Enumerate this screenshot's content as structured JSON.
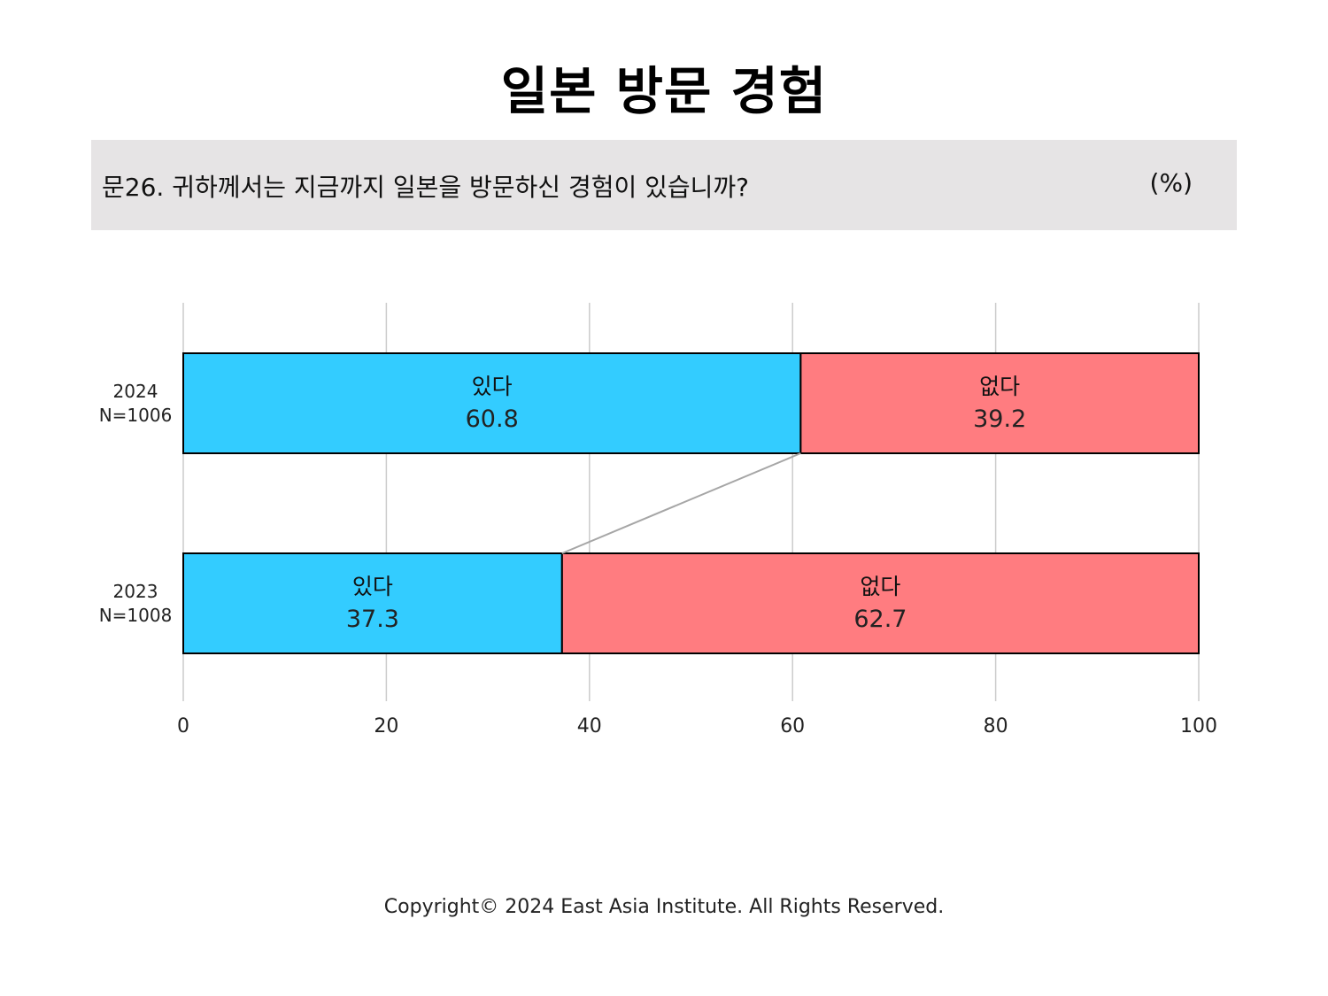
{
  "title": "일본 방문 경험",
  "question": {
    "text": "문26. 귀하께서는 지금까지 일본을 방문하신 경험이 있습니까?",
    "unit": "(%)"
  },
  "colors": {
    "yes": "#33ccff",
    "no": "#ff7c80",
    "grid": "#cccccc",
    "connector": "#a6a6a6"
  },
  "chart_data": {
    "type": "bar",
    "orientation": "horizontal",
    "stacked": true,
    "categories": [
      {
        "year": "2024",
        "n": "N=1006"
      },
      {
        "year": "2023",
        "n": "N=1008"
      }
    ],
    "series": [
      {
        "name": "있다",
        "values": [
          60.8,
          37.3
        ]
      },
      {
        "name": "없다",
        "values": [
          39.2,
          62.7
        ]
      }
    ],
    "xlim": [
      0,
      100
    ],
    "xticks": [
      "0",
      "20",
      "40",
      "60",
      "80",
      "100"
    ],
    "grid": true
  },
  "footer": "Copyright© 2024 East Asia Institute. All Rights Reserved."
}
